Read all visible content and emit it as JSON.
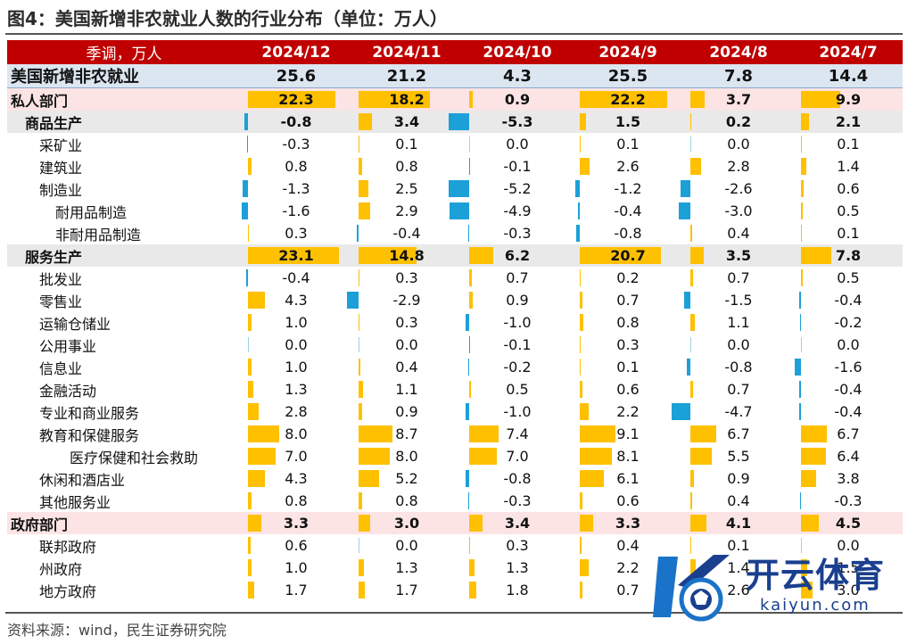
{
  "title": "图4：美国新增非农就业人数的行业分布（单位：万人）",
  "source": "资料来源：wind，民生证券研究院",
  "watermark": {
    "cn": "开云体育",
    "en": "kaiyun.com"
  },
  "colors": {
    "header_bg": "#c00000",
    "positive_bar": "#ffc000",
    "negative_bar": "#1ca0d8"
  },
  "chart_data": {
    "type": "table",
    "header_label": "季调，万人",
    "columns": [
      "2024/12",
      "2024/11",
      "2024/10",
      "2024/9",
      "2024/8",
      "2024/7"
    ],
    "total": {
      "label": "美国新增非农就业",
      "values": [
        "25.6",
        "21.2",
        "4.3",
        "25.5",
        "7.8",
        "14.4"
      ]
    },
    "rows": [
      {
        "label": "私人部门",
        "level": 0,
        "values": [
          22.3,
          18.2,
          0.9,
          22.2,
          3.7,
          9.9
        ]
      },
      {
        "label": "商品生产",
        "level": 1,
        "values": [
          -0.8,
          3.4,
          -5.3,
          1.5,
          0.2,
          2.1
        ]
      },
      {
        "label": "采矿业",
        "level": 2,
        "values": [
          -0.3,
          0.1,
          0.0,
          0.1,
          0.0,
          0.1
        ]
      },
      {
        "label": "建筑业",
        "level": 2,
        "values": [
          0.8,
          0.8,
          -0.1,
          2.6,
          2.8,
          1.4
        ]
      },
      {
        "label": "制造业",
        "level": 2,
        "values": [
          -1.3,
          2.5,
          -5.2,
          -1.2,
          -2.6,
          0.6
        ]
      },
      {
        "label": "耐用品制造",
        "level": 3,
        "values": [
          -1.6,
          2.9,
          -4.9,
          -0.4,
          -3.0,
          0.5
        ]
      },
      {
        "label": "非耐用品制造",
        "level": 3,
        "values": [
          0.3,
          -0.4,
          -0.3,
          -0.8,
          0.4,
          0.1
        ]
      },
      {
        "label": "服务生产",
        "level": 1,
        "values": [
          23.1,
          14.8,
          6.2,
          20.7,
          3.5,
          7.8
        ]
      },
      {
        "label": "批发业",
        "level": 2,
        "values": [
          -0.4,
          0.3,
          0.7,
          0.2,
          0.7,
          0.5
        ]
      },
      {
        "label": "零售业",
        "level": 2,
        "values": [
          4.3,
          -2.9,
          0.9,
          0.7,
          -1.5,
          -0.4
        ]
      },
      {
        "label": "运输仓储业",
        "level": 2,
        "values": [
          1.0,
          0.3,
          -1.0,
          0.8,
          1.1,
          -0.2
        ]
      },
      {
        "label": "公用事业",
        "level": 2,
        "values": [
          0.0,
          0.0,
          -0.1,
          0.3,
          0.0,
          0.0
        ]
      },
      {
        "label": "信息业",
        "level": 2,
        "values": [
          1.0,
          0.4,
          -0.2,
          0.1,
          -0.8,
          -1.6
        ]
      },
      {
        "label": "金融活动",
        "level": 2,
        "values": [
          1.3,
          1.1,
          0.5,
          0.6,
          0.7,
          -0.4
        ]
      },
      {
        "label": "专业和商业服务",
        "level": 2,
        "values": [
          2.8,
          0.9,
          -1.0,
          2.2,
          -4.7,
          -0.4
        ]
      },
      {
        "label": "教育和保健服务",
        "level": 2,
        "values": [
          8.0,
          8.7,
          7.4,
          9.1,
          6.7,
          6.7
        ]
      },
      {
        "label": "医疗保健和社会救助",
        "level": 4,
        "values": [
          7.0,
          8.0,
          7.0,
          8.1,
          5.5,
          6.4
        ]
      },
      {
        "label": "休闲和酒店业",
        "level": 2,
        "values": [
          4.3,
          5.2,
          -0.8,
          6.1,
          0.9,
          3.8
        ]
      },
      {
        "label": "其他服务业",
        "level": 2,
        "values": [
          0.8,
          0.8,
          -0.3,
          0.6,
          0.4,
          -0.3
        ]
      },
      {
        "label": "政府部门",
        "level": 0,
        "values": [
          3.3,
          3.0,
          3.4,
          3.3,
          4.1,
          4.5
        ]
      },
      {
        "label": "联邦政府",
        "level": 2,
        "values": [
          0.6,
          0.0,
          0.3,
          0.4,
          0.1,
          0.0
        ]
      },
      {
        "label": "州政府",
        "level": 2,
        "values": [
          1.0,
          1.3,
          1.3,
          2.2,
          1.4,
          1.5
        ]
      },
      {
        "label": "地方政府",
        "level": 2,
        "values": [
          1.7,
          1.7,
          1.8,
          0.7,
          2.6,
          3.0
        ]
      }
    ]
  }
}
